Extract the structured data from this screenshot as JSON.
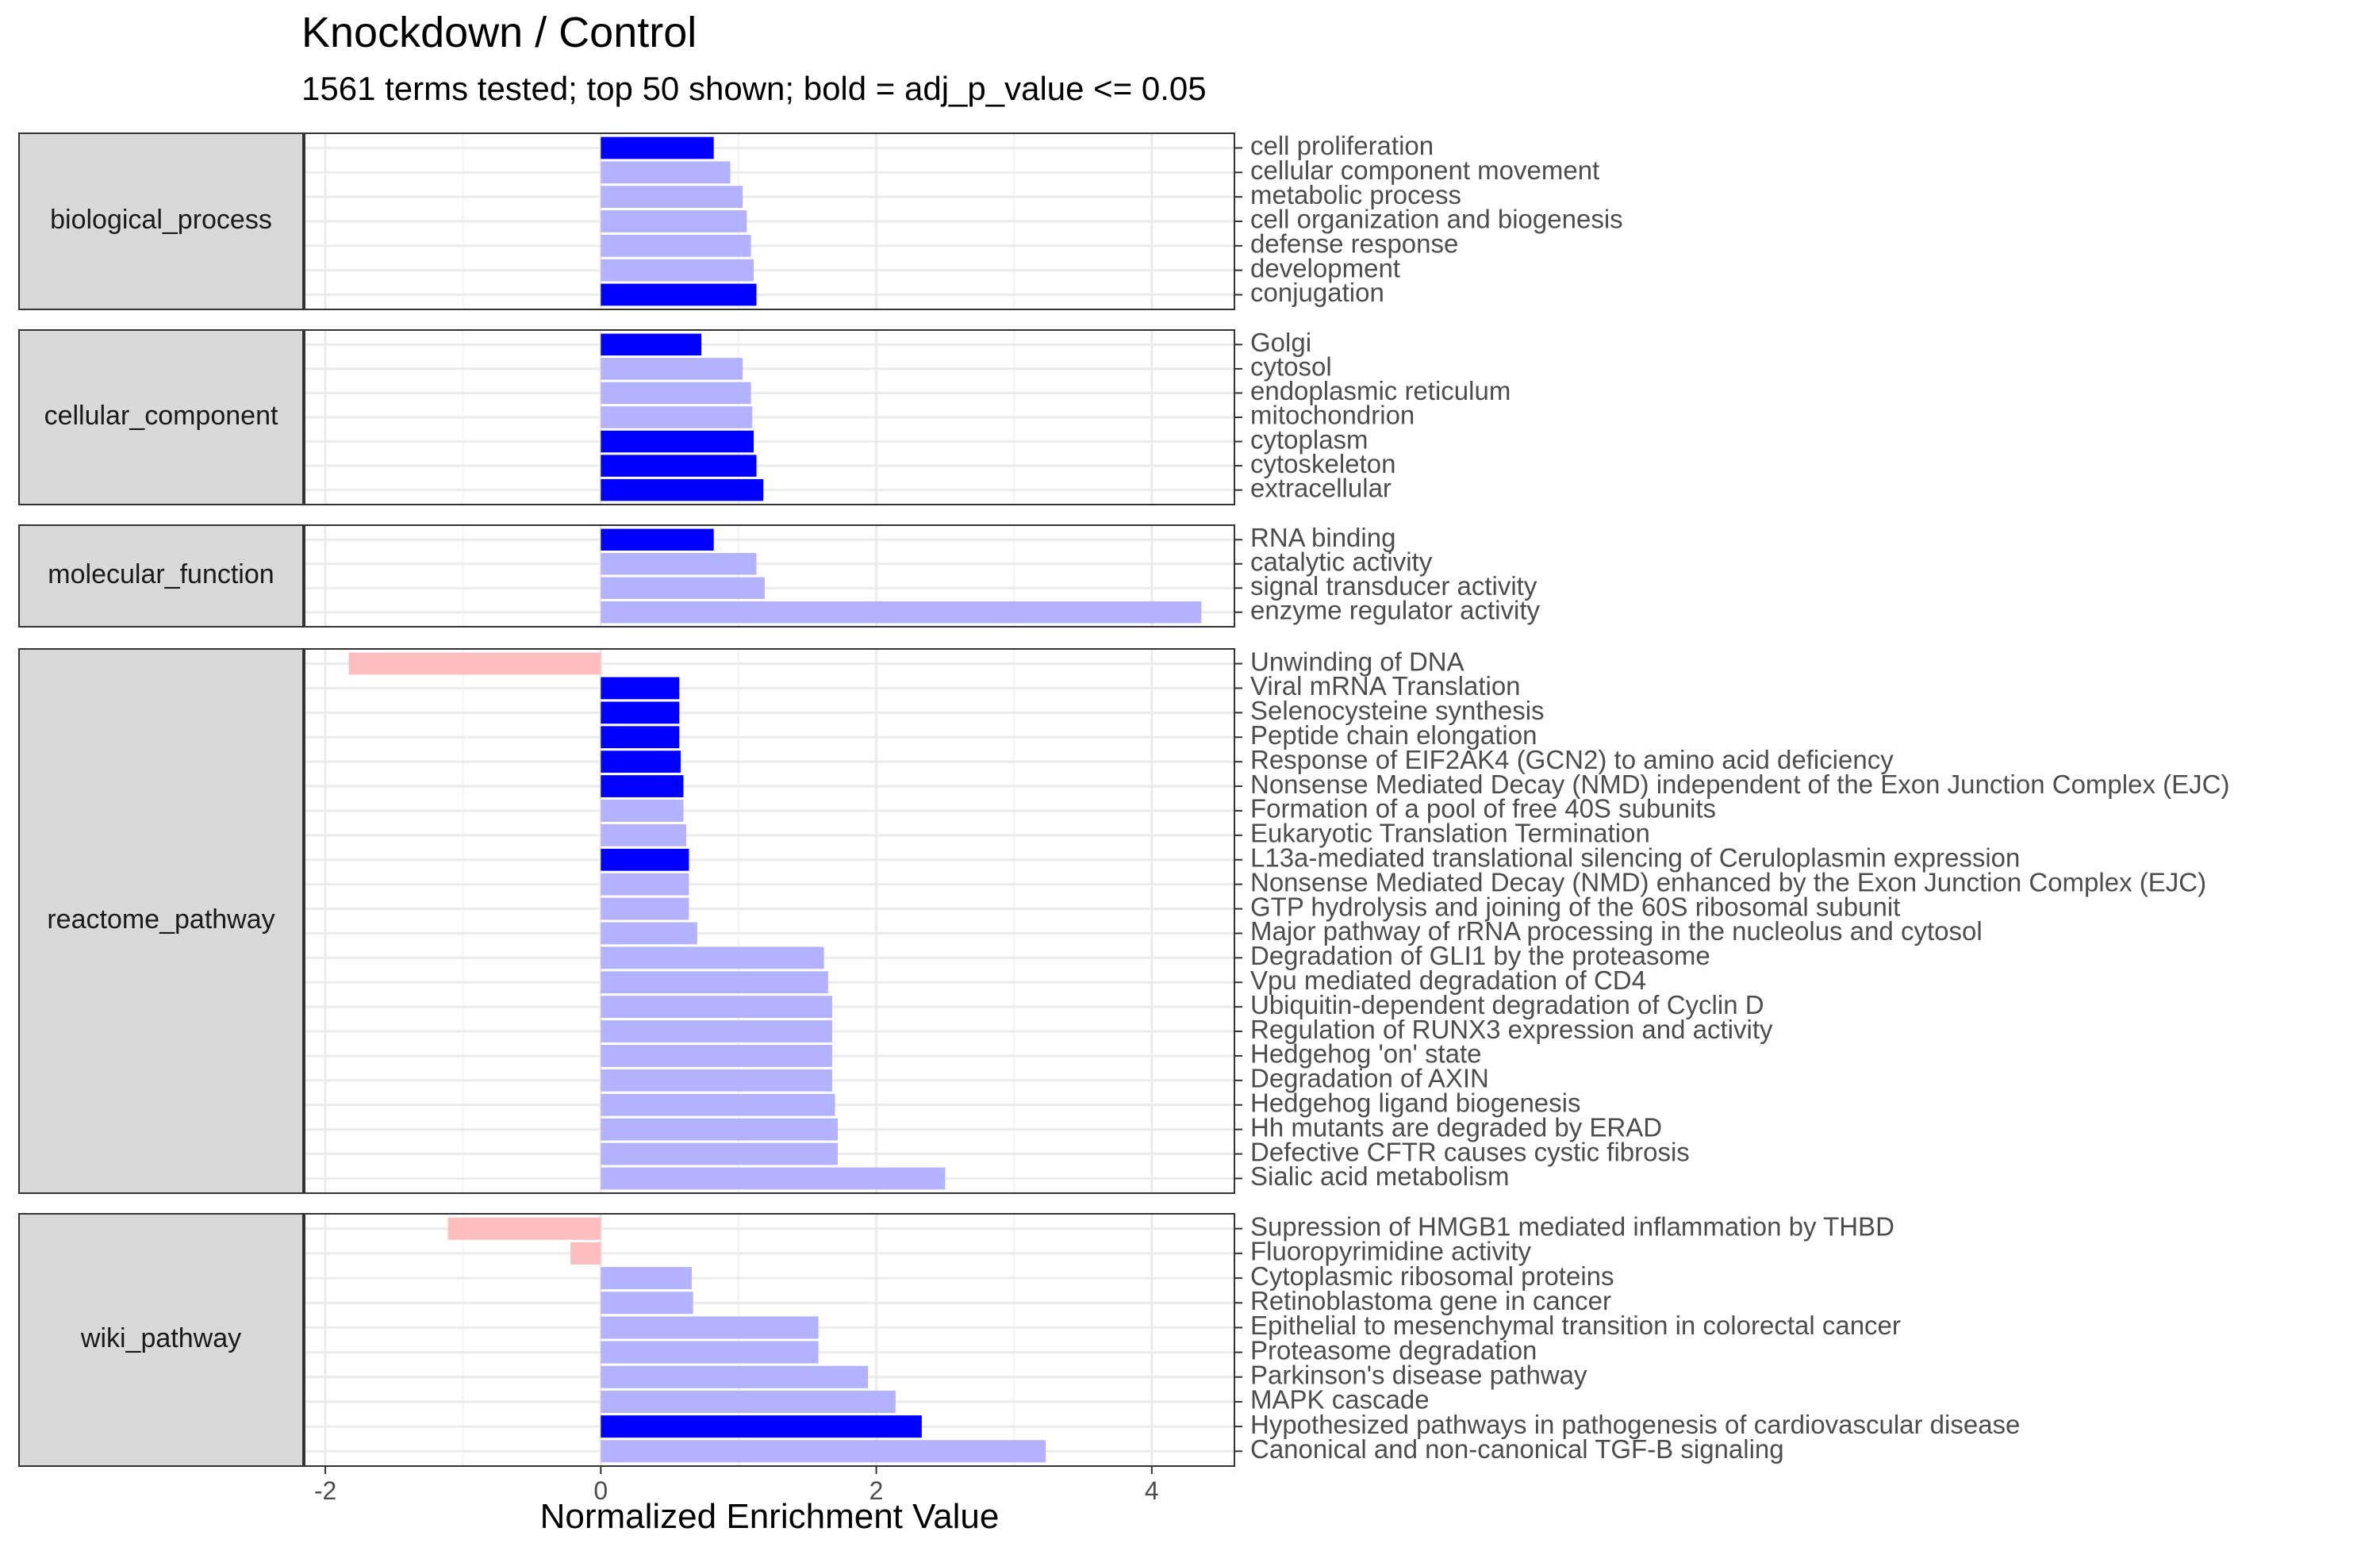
{
  "chart_data": {
    "type": "bar",
    "orientation": "horizontal",
    "title": "Knockdown / Control",
    "subtitle": "1561 terms tested; top 50 shown; bold = adj_p_value <= 0.05",
    "xlabel": "Normalized Enrichment Value",
    "ylabel": "",
    "xlim": [
      -2.15,
      4.6
    ],
    "xticks": [
      -2,
      0,
      2,
      4
    ],
    "xtick_labels": [
      "-2",
      "0",
      "2",
      "4"
    ],
    "grid": true,
    "legend": "none",
    "colors": {
      "positive_significant": "#0000FF",
      "positive_not_significant": "#B2B2FF",
      "negative_not_significant": "#FFBEBE",
      "strip_fill": "#D9D9D9",
      "panel_border": "#333333",
      "grid": "#EBEBEB"
    },
    "facets": [
      {
        "name": "biological_process",
        "terms": [
          {
            "label": "cell proliferation",
            "value": 0.82,
            "significant": true
          },
          {
            "label": "cellular component movement",
            "value": 0.94,
            "significant": false
          },
          {
            "label": "metabolic process",
            "value": 1.03,
            "significant": false
          },
          {
            "label": "cell organization and biogenesis",
            "value": 1.06,
            "significant": false
          },
          {
            "label": "defense response",
            "value": 1.09,
            "significant": false
          },
          {
            "label": "development",
            "value": 1.11,
            "significant": false
          },
          {
            "label": "conjugation",
            "value": 1.13,
            "significant": true
          }
        ]
      },
      {
        "name": "cellular_component",
        "terms": [
          {
            "label": "Golgi",
            "value": 0.73,
            "significant": true
          },
          {
            "label": "cytosol",
            "value": 1.03,
            "significant": false
          },
          {
            "label": "endoplasmic reticulum",
            "value": 1.09,
            "significant": false
          },
          {
            "label": "mitochondrion",
            "value": 1.1,
            "significant": false
          },
          {
            "label": "cytoplasm",
            "value": 1.11,
            "significant": true
          },
          {
            "label": "cytoskeleton",
            "value": 1.13,
            "significant": true
          },
          {
            "label": "extracellular",
            "value": 1.18,
            "significant": true
          }
        ]
      },
      {
        "name": "molecular_function",
        "terms": [
          {
            "label": "RNA binding",
            "value": 0.82,
            "significant": true
          },
          {
            "label": "catalytic activity",
            "value": 1.13,
            "significant": false
          },
          {
            "label": "signal transducer activity",
            "value": 1.19,
            "significant": false
          },
          {
            "label": "enzyme regulator activity",
            "value": 4.36,
            "significant": false
          }
        ]
      },
      {
        "name": "reactome_pathway",
        "terms": [
          {
            "label": "Unwinding of DNA",
            "value": -1.83,
            "significant": false
          },
          {
            "label": "Viral mRNA Translation",
            "value": 0.57,
            "significant": true
          },
          {
            "label": "Selenocysteine synthesis",
            "value": 0.57,
            "significant": true
          },
          {
            "label": "Peptide chain elongation",
            "value": 0.57,
            "significant": true
          },
          {
            "label": "Response of EIF2AK4 (GCN2) to amino acid deficiency",
            "value": 0.58,
            "significant": true
          },
          {
            "label": "Nonsense Mediated Decay (NMD) independent of the Exon Junction Complex (EJC)",
            "value": 0.6,
            "significant": true
          },
          {
            "label": "Formation of a pool of free 40S subunits",
            "value": 0.6,
            "significant": false
          },
          {
            "label": "Eukaryotic Translation Termination",
            "value": 0.62,
            "significant": false
          },
          {
            "label": "L13a-mediated translational silencing of Ceruloplasmin expression",
            "value": 0.64,
            "significant": true
          },
          {
            "label": "Nonsense Mediated Decay (NMD) enhanced by the Exon Junction Complex (EJC)",
            "value": 0.64,
            "significant": false
          },
          {
            "label": "GTP hydrolysis and joining of the 60S ribosomal subunit",
            "value": 0.64,
            "significant": false
          },
          {
            "label": "Major pathway of rRNA processing in the nucleolus and cytosol",
            "value": 0.7,
            "significant": false
          },
          {
            "label": "Degradation of GLI1 by the proteasome",
            "value": 1.62,
            "significant": false
          },
          {
            "label": "Vpu mediated degradation of CD4",
            "value": 1.65,
            "significant": false
          },
          {
            "label": "Ubiquitin-dependent degradation of Cyclin D",
            "value": 1.68,
            "significant": false
          },
          {
            "label": "Regulation of RUNX3 expression and activity",
            "value": 1.68,
            "significant": false
          },
          {
            "label": "Hedgehog 'on' state",
            "value": 1.68,
            "significant": false
          },
          {
            "label": "Degradation of AXIN",
            "value": 1.68,
            "significant": false
          },
          {
            "label": "Hedgehog ligand biogenesis",
            "value": 1.7,
            "significant": false
          },
          {
            "label": "Hh mutants are degraded by ERAD",
            "value": 1.72,
            "significant": false
          },
          {
            "label": "Defective CFTR causes cystic fibrosis",
            "value": 1.72,
            "significant": false
          },
          {
            "label": "Sialic acid metabolism",
            "value": 2.5,
            "significant": false
          }
        ]
      },
      {
        "name": "wiki_pathway",
        "terms": [
          {
            "label": "Supression of HMGB1 mediated inflammation by THBD",
            "value": -1.11,
            "significant": false
          },
          {
            "label": "Fluoropyrimidine activity",
            "value": -0.22,
            "significant": false
          },
          {
            "label": "Cytoplasmic ribosomal proteins",
            "value": 0.66,
            "significant": false
          },
          {
            "label": "Retinoblastoma gene in cancer",
            "value": 0.67,
            "significant": false
          },
          {
            "label": "Epithelial to mesenchymal transition in colorectal cancer",
            "value": 1.58,
            "significant": false
          },
          {
            "label": "Proteasome degradation",
            "value": 1.58,
            "significant": false
          },
          {
            "label": "Parkinson's disease pathway",
            "value": 1.94,
            "significant": false
          },
          {
            "label": "MAPK cascade",
            "value": 2.14,
            "significant": false
          },
          {
            "label": "Hypothesized pathways in pathogenesis of cardiovascular disease",
            "value": 2.33,
            "significant": true
          },
          {
            "label": "Canonical and non-canonical TGF-B signaling",
            "value": 3.23,
            "significant": false
          }
        ]
      }
    ]
  }
}
